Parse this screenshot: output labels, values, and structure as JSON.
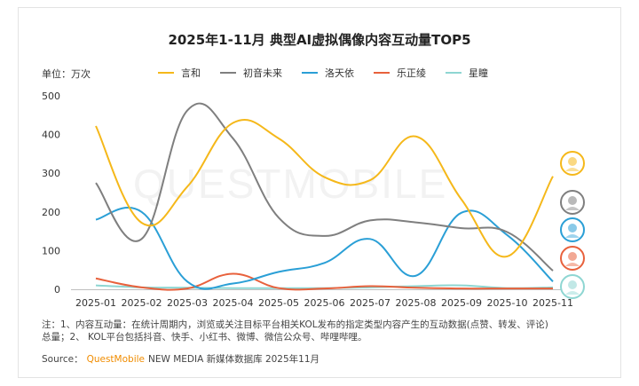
{
  "title": "2025年1-11月 典型AI虚拟偶像内容互动量TOP5",
  "unit_label": "单位：万次",
  "watermark": "QUESTMOBILE",
  "notes": {
    "line1": "注：1、内容互动量：在统计周期内，浏览或关注目标平台相关KOL发布的指定类型内容产生的互动数据(点赞、转发、评论)",
    "line2": "总量；2、 KOL平台包括抖音、快手、小红书、微博、微信公众号、哔哩哔哩。"
  },
  "source": {
    "label": "Source：",
    "brand": "QuestMobile",
    "rest": "NEW MEDIA 新媒体数据库 2025年11月"
  },
  "chart_data": {
    "type": "line",
    "title": "2025年1-11月 典型AI虚拟偶像内容互动量TOP5",
    "ylabel": "万次",
    "xlabel": "",
    "ylim": [
      0,
      500
    ],
    "yticks": [
      "0",
      "100",
      "200",
      "300",
      "400",
      "500"
    ],
    "categories": [
      "2025-01",
      "2025-02",
      "2025-03",
      "2025-04",
      "2025-05",
      "2025-06",
      "2025-07",
      "2025-08",
      "2025-09",
      "2025-10",
      "2025-11"
    ],
    "series": [
      {
        "name": "言和",
        "color": "#f5b81a",
        "values": [
          422,
          172,
          265,
          430,
          390,
          290,
          282,
          395,
          232,
          85,
          292
        ]
      },
      {
        "name": "初音未来",
        "color": "#7f7f7f",
        "values": [
          275,
          130,
          462,
          390,
          185,
          138,
          178,
          173,
          158,
          148,
          48
        ]
      },
      {
        "name": "洛天依",
        "color": "#2a9fd6",
        "values": [
          180,
          200,
          20,
          15,
          45,
          68,
          130,
          35,
          198,
          140,
          20
        ]
      },
      {
        "name": "乐正绫",
        "color": "#e8613c",
        "values": [
          28,
          5,
          2,
          40,
          3,
          2,
          8,
          4,
          2,
          2,
          2
        ]
      },
      {
        "name": "星瞳",
        "color": "#8ed6d2",
        "values": [
          10,
          5,
          4,
          3,
          3,
          3,
          5,
          8,
          10,
          3,
          5
        ]
      }
    ],
    "legend_position": "top"
  }
}
